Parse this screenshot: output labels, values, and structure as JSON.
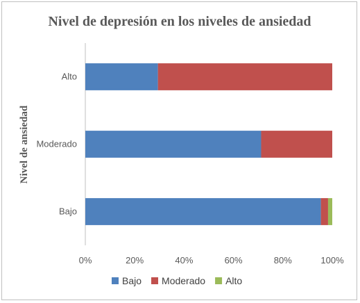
{
  "chart_data": {
    "type": "bar",
    "orientation": "horizontal",
    "stacking": "percent",
    "title": "Nivel de depresión en los niveles de ansiedad",
    "xlabel": "",
    "ylabel": "Nivel de ansiedad",
    "categories": [
      "Alto",
      "Moderado",
      "Bajo"
    ],
    "series": [
      {
        "name": "Bajo",
        "color": "#4f81bd",
        "values": [
          29.4,
          71.2,
          95.4
        ]
      },
      {
        "name": "Moderado",
        "color": "#c0504d",
        "values": [
          70.6,
          28.8,
          2.9
        ]
      },
      {
        "name": "Alto",
        "color": "#9bbb59",
        "values": [
          0,
          0,
          1.7
        ]
      }
    ],
    "xlim": [
      0,
      100
    ],
    "xticks": [
      "0%",
      "20%",
      "40%",
      "60%",
      "80%",
      "100%"
    ],
    "grid": false,
    "legend_position": "bottom"
  }
}
